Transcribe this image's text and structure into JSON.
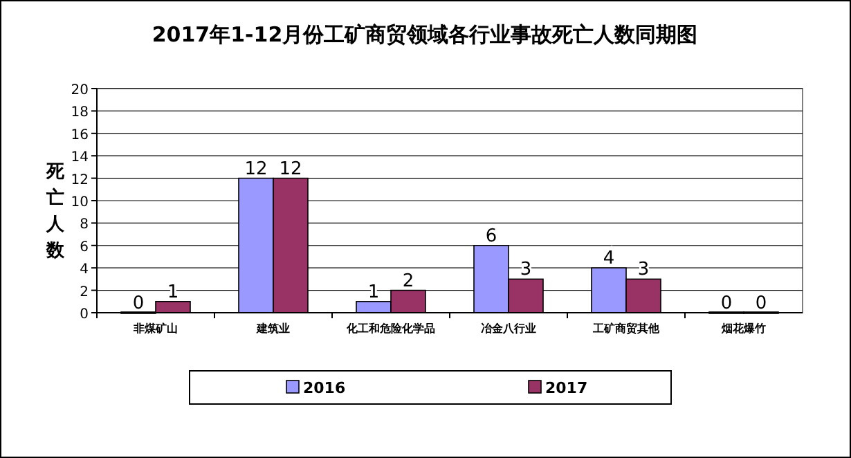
{
  "chart_data": {
    "type": "bar",
    "title": "2017年1-12月份工矿商贸领域各行业事故死亡人数同期图",
    "ylabel": "死亡人数",
    "categories": [
      "非煤矿山",
      "建筑业",
      "化工和危险化学品",
      "冶金八行业",
      "工矿商贸其他",
      "烟花爆竹"
    ],
    "series": [
      {
        "name": "2016",
        "color": "#9999ff",
        "values": [
          0,
          12,
          1,
          6,
          4,
          0
        ]
      },
      {
        "name": "2017",
        "color": "#993366",
        "values": [
          1,
          12,
          2,
          3,
          3,
          0
        ]
      }
    ],
    "ylim": [
      0,
      20
    ],
    "yticks": [
      0,
      2,
      4,
      6,
      8,
      10,
      12,
      14,
      16,
      18,
      20
    ],
    "grid": "y",
    "legend": "bottom",
    "data_labels": true
  }
}
